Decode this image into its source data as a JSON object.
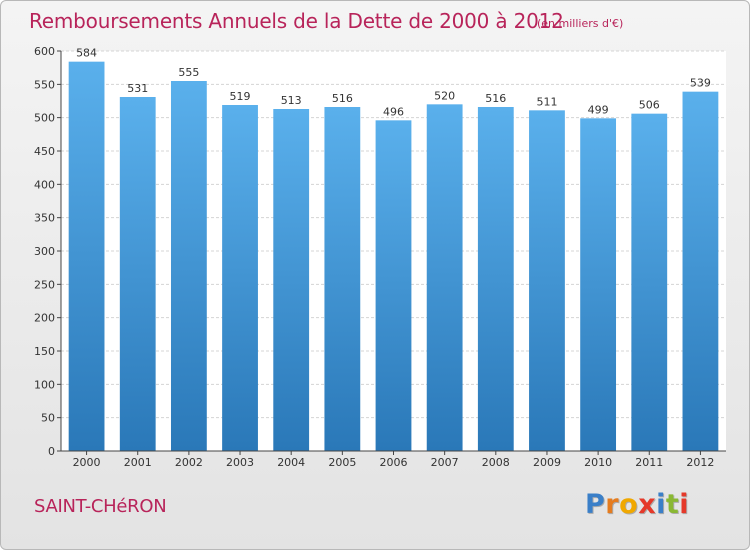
{
  "title": "Remboursements Annuels de la Dette de 2000 à 2012",
  "subtitle": "(en milliers d'€)",
  "commune": "SAINT-CHéRON",
  "logo": {
    "text": "Proxiti",
    "colors": [
      "#3a7fc8",
      "#e57c1f",
      "#f0a800",
      "#e5392a",
      "#3a7fc8",
      "#8ab833",
      "#e5392a"
    ]
  },
  "colors": {
    "bar_top": "#5ab0ec",
    "bar_bottom": "#2a78b8",
    "accent_text": "#b8245a"
  },
  "chart_data": {
    "type": "bar",
    "categories": [
      "2000",
      "2001",
      "2002",
      "2003",
      "2004",
      "2005",
      "2006",
      "2007",
      "2008",
      "2009",
      "2010",
      "2011",
      "2012"
    ],
    "values": [
      584,
      531,
      555,
      519,
      513,
      516,
      496,
      520,
      516,
      511,
      499,
      506,
      539
    ],
    "ylim": [
      0,
      600
    ],
    "yticks": [
      0,
      50,
      100,
      150,
      200,
      250,
      300,
      350,
      400,
      450,
      500,
      550,
      600
    ],
    "grid": true,
    "title": "Remboursements Annuels de la Dette de 2000 à 2012",
    "xlabel": "",
    "ylabel": ""
  }
}
